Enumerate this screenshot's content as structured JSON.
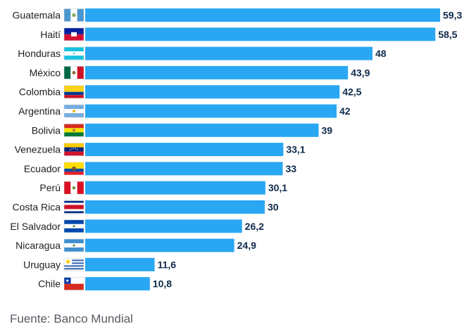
{
  "source_text": "Fuente: Banco Mundial",
  "colors": {
    "bar": "#2aa7f3",
    "label": "#1e1e1e",
    "value": "#0d2a4a"
  },
  "chart_data": {
    "type": "bar",
    "orientation": "horizontal",
    "categories": [
      "Guatemala",
      "Haití",
      "Honduras",
      "México",
      "Colombia",
      "Argentina",
      "Bolivia",
      "Venezuela",
      "Ecuador",
      "Perú",
      "Costa Rica",
      "El Salvador",
      "Nicaragua",
      "Uruguay",
      "Chile"
    ],
    "values": [
      59.3,
      58.5,
      48,
      43.9,
      42.5,
      42,
      39,
      33.1,
      33,
      30.1,
      30,
      26.2,
      24.9,
      11.6,
      10.8
    ],
    "value_labels": [
      "59,3",
      "58,5",
      "48",
      "43,9",
      "42,5",
      "42",
      "39",
      "33,1",
      "33",
      "30,1",
      "30",
      "26,2",
      "24,9",
      "11,6",
      "10,8"
    ],
    "flag_icons": [
      "flag-guatemala-icon",
      "flag-haiti-icon",
      "flag-honduras-icon",
      "flag-mexico-icon",
      "flag-colombia-icon",
      "flag-argentina-icon",
      "flag-bolivia-icon",
      "flag-venezuela-icon",
      "flag-ecuador-icon",
      "flag-peru-icon",
      "flag-costa-rica-icon",
      "flag-el-salvador-icon",
      "flag-nicaragua-icon",
      "flag-uruguay-icon",
      "flag-chile-icon"
    ],
    "xlim": [
      0,
      59.3
    ],
    "grid": false,
    "legend": "none"
  }
}
